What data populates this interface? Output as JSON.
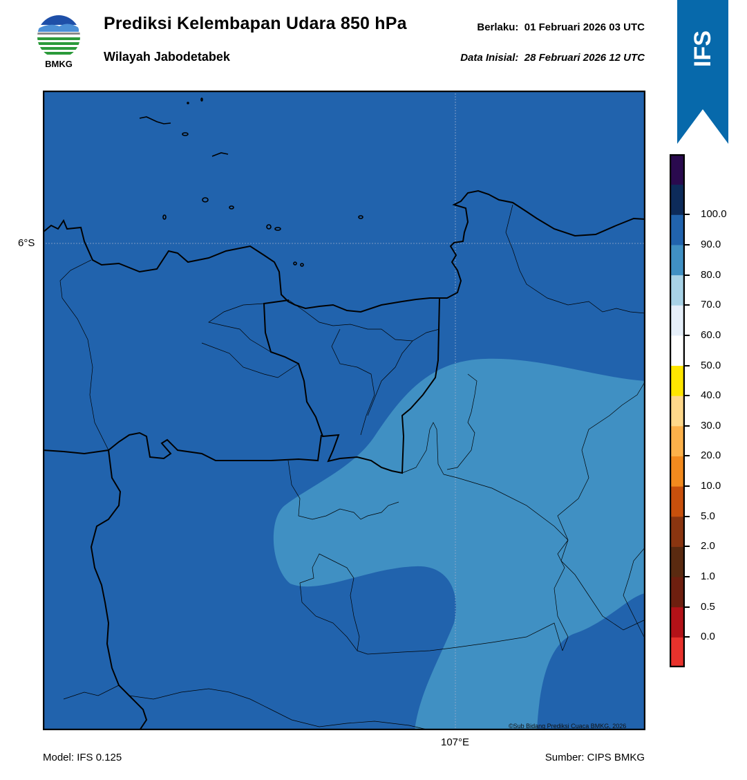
{
  "header": {
    "title": "Prediksi Kelembapan Udara 850 hPa",
    "subtitle": "Wilayah Jabodetabek",
    "valid_label": "Berlaku:",
    "valid_time": "01 Februari 2026 03 UTC",
    "init_label": "Data Inisial:",
    "init_time": "28 Februari 2026 12 UTC"
  },
  "logo": {
    "text": "BMKG"
  },
  "ribbon": {
    "text": "IFS",
    "color": "#0769ab"
  },
  "map": {
    "lat_label": "6°S",
    "lon_label": "107°E",
    "copyright": "©Sub Bidang Prediksi Cuaca BMKG, 2026",
    "colors": {
      "band_80_90": "#2163ad",
      "band_70_80": "#4090c3"
    }
  },
  "footer": {
    "model": "Model: IFS 0.125",
    "source": "Sumber: CIPS BMKG"
  },
  "colorbar": {
    "levels": [
      "0.0",
      "0.5",
      "1.0",
      "2.0",
      "5.0",
      "10.0",
      "20.0",
      "30.0",
      "40.0",
      "50.0",
      "60.0",
      "70.0",
      "80.0",
      "90.0",
      "100.0"
    ],
    "colors": [
      "#e8322c",
      "#b31218",
      "#6e1f0f",
      "#5a2a10",
      "#8a3510",
      "#c8500c",
      "#f28a1e",
      "#fcb14a",
      "#ffd88a",
      "#ffe600",
      "#ffffff",
      "#e6eff9",
      "#a8d2e6",
      "#4090c3",
      "#2163ad",
      "#0d2b5a",
      "#2a0a4e"
    ]
  }
}
